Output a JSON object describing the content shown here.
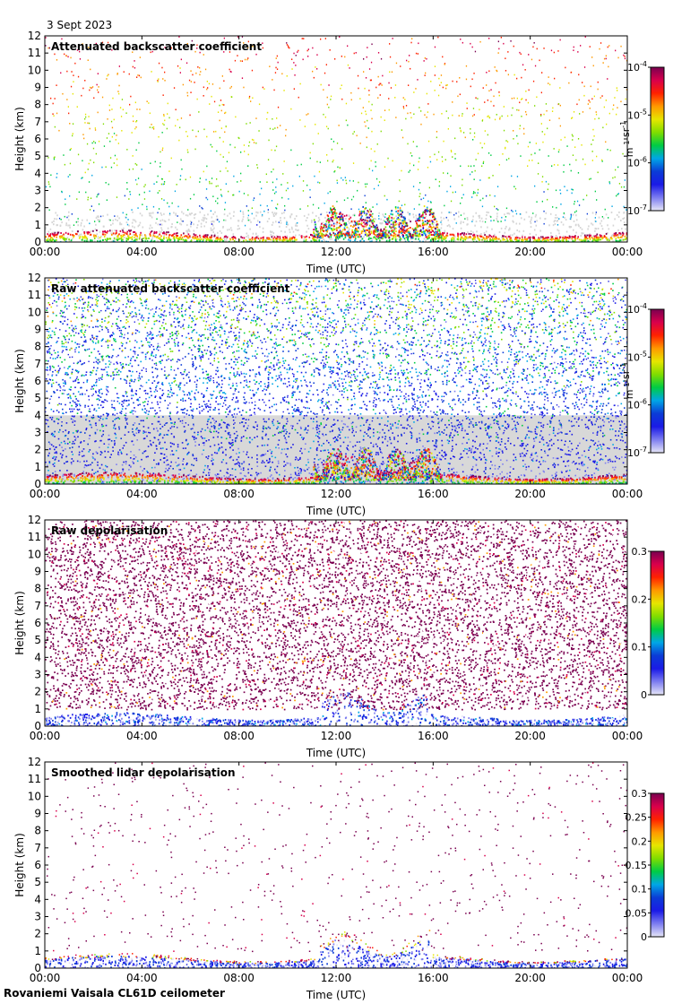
{
  "header": {
    "date": "3 Sept 2023"
  },
  "footer": {
    "label": "Rovaniemi Vaisala CL61D ceilometer"
  },
  "colors": {
    "colormap": [
      "#e6e6f7",
      "#7d7df0",
      "#1a1ae6",
      "#0b3cd6",
      "#00a6e6",
      "#00cc44",
      "#7fdd00",
      "#e6e600",
      "#ff9900",
      "#ff2200",
      "#d9004c",
      "#7a0050"
    ]
  },
  "chart_data": [
    {
      "type": "heatmap",
      "title": "Attenuated backscatter coefficient",
      "xlabel": "Time (UTC)",
      "ylabel": "Height (km)",
      "xticks": [
        "00:00",
        "04:00",
        "08:00",
        "12:00",
        "16:00",
        "20:00",
        "00:00"
      ],
      "yticks": [
        "0",
        "1",
        "2",
        "3",
        "4",
        "5",
        "6",
        "7",
        "8",
        "9",
        "10",
        "11",
        "12"
      ],
      "ylim": [
        0,
        12
      ],
      "colorbar": {
        "scale": "log",
        "range": [
          1e-07,
          0.0001
        ],
        "ticks": [
          {
            "base": "10",
            "exp": "-4"
          },
          {
            "base": "10",
            "exp": "-5"
          },
          {
            "base": "10",
            "exp": "-6"
          },
          {
            "base": "10",
            "exp": "-7"
          }
        ],
        "unit_parts": [
          {
            "t": "m"
          },
          {
            "t": "-1",
            "sup": true
          },
          {
            "t": " sr"
          },
          {
            "t": "-1",
            "sup": true
          }
        ]
      },
      "pattern": "sparse-backscatter"
    },
    {
      "type": "heatmap",
      "title": "Raw attenuated backscatter coefficient",
      "xlabel": "Time (UTC)",
      "ylabel": "Height (km)",
      "xticks": [
        "00:00",
        "04:00",
        "08:00",
        "12:00",
        "16:00",
        "20:00",
        "00:00"
      ],
      "yticks": [
        "0",
        "1",
        "2",
        "3",
        "4",
        "5",
        "6",
        "7",
        "8",
        "9",
        "10",
        "11",
        "12"
      ],
      "ylim": [
        0,
        12
      ],
      "colorbar": {
        "scale": "log",
        "range": [
          1e-07,
          0.0001
        ],
        "ticks": [
          {
            "base": "10",
            "exp": "-4"
          },
          {
            "base": "10",
            "exp": "-5"
          },
          {
            "base": "10",
            "exp": "-6"
          },
          {
            "base": "10",
            "exp": "-7"
          }
        ],
        "unit_parts": [
          {
            "t": "m"
          },
          {
            "t": "-1",
            "sup": true
          },
          {
            "t": " sr"
          },
          {
            "t": "-1",
            "sup": true
          }
        ]
      },
      "pattern": "dense-noise"
    },
    {
      "type": "heatmap",
      "title": "Raw depolarisation",
      "xlabel": "Time (UTC)",
      "ylabel": "Height (km)",
      "xticks": [
        "00:00",
        "04:00",
        "08:00",
        "12:00",
        "16:00",
        "20:00",
        "00:00"
      ],
      "yticks": [
        "0",
        "1",
        "2",
        "3",
        "4",
        "5",
        "6",
        "7",
        "8",
        "9",
        "10",
        "11",
        "12"
      ],
      "ylim": [
        0,
        12
      ],
      "colorbar": {
        "scale": "linear",
        "range": [
          0,
          0.3
        ],
        "ticks": [
          {
            "base": "0.3"
          },
          {
            "base": "0.2"
          },
          {
            "base": "0.1"
          },
          {
            "base": "0"
          }
        ],
        "unit_parts": []
      },
      "pattern": "depol-raw"
    },
    {
      "type": "heatmap",
      "title": "Smoothed lidar depolarisation",
      "xlabel": "Time (UTC)",
      "ylabel": "Height (km)",
      "xticks": [
        "00:00",
        "04:00",
        "08:00",
        "12:00",
        "16:00",
        "20:00",
        "00:00"
      ],
      "yticks": [
        "0",
        "1",
        "2",
        "3",
        "4",
        "5",
        "6",
        "7",
        "8",
        "9",
        "10",
        "11",
        "12"
      ],
      "ylim": [
        0,
        12
      ],
      "colorbar": {
        "scale": "linear",
        "range": [
          0,
          0.3
        ],
        "ticks": [
          {
            "base": "0.3"
          },
          {
            "base": "0.25"
          },
          {
            "base": "0.2"
          },
          {
            "base": "0.15"
          },
          {
            "base": "0.1"
          },
          {
            "base": "0.05"
          },
          {
            "base": "0"
          }
        ],
        "unit_parts": []
      },
      "pattern": "depol-smooth"
    }
  ]
}
